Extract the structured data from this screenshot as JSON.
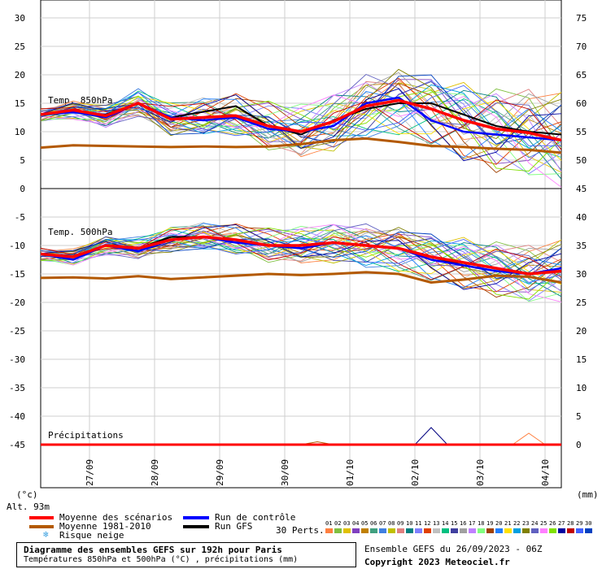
{
  "header": {
    "unit_left": "(°c)",
    "unit_right": "(mm)",
    "altitude": "Alt. 93m"
  },
  "chart_data": {
    "type": "line",
    "x": [
      "26/09 06Z",
      "26/09 18Z",
      "27/09 06Z",
      "27/09 18Z",
      "28/09 06Z",
      "28/09 18Z",
      "29/09 06Z",
      "29/09 18Z",
      "30/09 06Z",
      "30/09 18Z",
      "01/10 06Z",
      "01/10 18Z",
      "02/10 06Z",
      "02/10 18Z",
      "03/10 06Z",
      "03/10 18Z",
      "04/10 06Z"
    ],
    "x_tick_labels": [
      "27/09",
      "28/09",
      "29/09",
      "30/09",
      "01/10",
      "02/10",
      "03/10",
      "04/10"
    ],
    "left_axis_ticks": [
      30,
      25,
      20,
      15,
      10,
      5,
      0,
      -5,
      -10,
      -15,
      -20,
      -25,
      -30,
      -35,
      -40,
      -45
    ],
    "right_axis_ticks": [
      75,
      70,
      65,
      60,
      55,
      50,
      45,
      40,
      35,
      30,
      25,
      20,
      15,
      10,
      5,
      0
    ],
    "panels": [
      {
        "title": "Temp. 850hPa",
        "ylim": [
          0,
          33
        ],
        "series": [
          {
            "name": "Moyenne des scénarios",
            "color": "#ff0000",
            "values": [
              13,
              13.8,
              12.8,
              15,
              12.2,
              12.5,
              12.8,
              11,
              10,
              11.8,
              14.5,
              15.5,
              14,
              12,
              10.5,
              9.8,
              8.5
            ]
          },
          {
            "name": "Moyenne 1981-2010",
            "color": "#b35900",
            "values": [
              7.2,
              7.6,
              7.5,
              7.4,
              7.3,
              7.4,
              7.3,
              7.4,
              7.8,
              8.5,
              8.8,
              8.2,
              7.5,
              7.3,
              7.0,
              6.8,
              6.3
            ]
          },
          {
            "name": "Run de contrôle",
            "color": "#0000ff",
            "values": [
              13,
              13.5,
              12.5,
              15,
              12.5,
              12,
              12.5,
              10.5,
              10,
              11,
              15,
              16,
              12,
              10,
              9.5,
              9,
              8.5
            ]
          },
          {
            "name": "Run GFS",
            "color": "#000000",
            "values": [
              13,
              13.5,
              13,
              15,
              12.5,
              13.5,
              14.5,
              11,
              9.5,
              12,
              14,
              15,
              15,
              13,
              11,
              10,
              9.5
            ]
          }
        ]
      },
      {
        "title": "Temp. 500hPa",
        "ylim": [
          -50,
          -3
        ],
        "series": [
          {
            "name": "Moyenne des scénarios",
            "color": "#ff0000",
            "values": [
              -11.5,
              -12,
              -10,
              -10.5,
              -9,
              -8.5,
              -9,
              -10,
              -10,
              -9.5,
              -10,
              -10.5,
              -12,
              -13,
              -14,
              -15,
              -14.5
            ]
          },
          {
            "name": "Moyenne 1981-2010",
            "color": "#b35900",
            "values": [
              -15.7,
              -15.6,
              -15.8,
              -15.4,
              -15.9,
              -15.6,
              -15.3,
              -15,
              -15.2,
              -15,
              -14.7,
              -15,
              -16.5,
              -16,
              -15.3,
              -15.5,
              -16.5
            ]
          },
          {
            "name": "Run de contrôle",
            "color": "#0000ff",
            "values": [
              -11.5,
              -12.5,
              -10,
              -11,
              -9,
              -8.5,
              -9.5,
              -10,
              -10.5,
              -9.5,
              -10,
              -10.5,
              -12.5,
              -13.5,
              -14.5,
              -15,
              -14
            ]
          },
          {
            "name": "Run GFS",
            "color": "#000000",
            "values": [
              -11.5,
              -12,
              -10,
              -10.5,
              -8.5,
              -8.5,
              -9,
              -10,
              -10.5,
              -9.5,
              -10,
              -10.5,
              -12,
              -13.5,
              -14.5,
              -15,
              -14
            ]
          }
        ]
      },
      {
        "title": "Précipitations",
        "ylim": [
          0,
          10
        ],
        "series": [
          {
            "name": "Moyenne des scénarios",
            "color": "#ff0000",
            "values": [
              0,
              0,
              0,
              0,
              0,
              0,
              0,
              0,
              0,
              0,
              0,
              0,
              0,
              0,
              0,
              0,
              0
            ]
          },
          {
            "name": "Run de contrôle",
            "color": "#0000ff",
            "values": [
              0,
              0,
              0,
              0,
              0,
              0,
              0,
              0,
              0,
              0,
              0,
              0,
              0,
              0,
              0,
              0,
              0
            ]
          }
        ]
      }
    ]
  },
  "legend": {
    "items": [
      {
        "label": "Moyenne des scénarios",
        "color": "#ff0000"
      },
      {
        "label": "Moyenne 1981-2010",
        "color": "#b35900"
      },
      {
        "label": "Run de contrôle",
        "color": "#0000ff"
      },
      {
        "label": "Run GFS",
        "color": "#000000"
      }
    ],
    "snow_label": "Risque neige",
    "perts_label": "30 Perts.",
    "pert_numbers": [
      "01",
      "02",
      "03",
      "04",
      "05",
      "06",
      "07",
      "08",
      "09",
      "10",
      "11",
      "12",
      "13",
      "14",
      "15",
      "16",
      "17",
      "18",
      "19",
      "20",
      "21",
      "22",
      "23",
      "24",
      "25",
      "26",
      "27",
      "28",
      "29",
      "30"
    ],
    "pert_colors": [
      "#ff8040",
      "#80c040",
      "#e0c000",
      "#8040c0",
      "#c08000",
      "#40a080",
      "#4080e0",
      "#c0c000",
      "#e08080",
      "#008080",
      "#8080ff",
      "#e04000",
      "#c0c0c0",
      "#00c080",
      "#4040a0",
      "#a0a0a0",
      "#c080ff",
      "#80ff80",
      "#a04000",
      "#2080ff",
      "#ffe000",
      "#00a0e0",
      "#808000",
      "#6060c0",
      "#ff80ff",
      "#80e000",
      "#0000a0",
      "#c00000",
      "#4060ff",
      "#0040c0"
    ]
  },
  "footer": {
    "title": "Diagramme des ensembles GEFS sur 192h pour Paris",
    "subtitle": "Températures 850hPa et 500hPa (°C) , précipitations (mm)",
    "run_info": "Ensemble GEFS du 26/09/2023 - 06Z",
    "copyright": "Copyright 2023 Meteociel.fr"
  }
}
